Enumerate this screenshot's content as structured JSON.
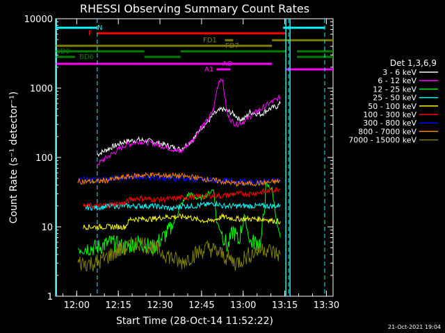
{
  "chart_data": {
    "type": "line",
    "title": "RHESSI Observing Summary Count Rates",
    "xlabel": "Start Time (28-Oct-14 11:52:22)",
    "ylabel": "Count Rate (s⁻¹ detector⁻¹)",
    "ylog": true,
    "ylim": [
      1,
      10000
    ],
    "xlim_minutes_from_start": [
      0,
      100
    ],
    "x_ticks": [
      {
        "label": "12:00",
        "t": 7.6
      },
      {
        "label": "12:15",
        "t": 22.6
      },
      {
        "label": "12:30",
        "t": 37.6
      },
      {
        "label": "12:45",
        "t": 52.6
      },
      {
        "label": "13:00",
        "t": 67.6
      },
      {
        "label": "13:15",
        "t": 82.6
      },
      {
        "label": "13:30",
        "t": 97.6
      }
    ],
    "y_ticks": [
      {
        "label": "1",
        "v": 1
      },
      {
        "label": "10",
        "v": 10
      },
      {
        "label": "100",
        "v": 100
      },
      {
        "label": "1000",
        "v": 1000
      },
      {
        "label": "10000",
        "v": 10000
      }
    ],
    "legend": {
      "title": "Det 1,3,6,9",
      "placement": "right"
    },
    "series": [
      {
        "name": "3 - 6 keV",
        "color": "#ffffff",
        "points": [
          [
            15,
            110
          ],
          [
            20,
            140
          ],
          [
            25,
            170
          ],
          [
            30,
            180
          ],
          [
            35,
            170
          ],
          [
            40,
            150
          ],
          [
            45,
            130
          ],
          [
            50,
            190
          ],
          [
            52,
            260
          ],
          [
            55,
            330
          ],
          [
            57,
            420
          ],
          [
            60,
            500
          ],
          [
            63,
            450
          ],
          [
            65,
            400
          ],
          [
            66,
            360
          ],
          [
            68,
            360
          ],
          [
            70,
            450
          ],
          [
            74,
            420
          ],
          [
            77,
            500
          ],
          [
            80,
            550
          ],
          [
            81,
            600
          ]
        ]
      },
      {
        "name": "6 - 12 keV",
        "color": "#ff00ff",
        "points": [
          [
            15,
            80
          ],
          [
            20,
            110
          ],
          [
            25,
            150
          ],
          [
            30,
            170
          ],
          [
            35,
            160
          ],
          [
            40,
            140
          ],
          [
            45,
            120
          ],
          [
            50,
            190
          ],
          [
            52,
            260
          ],
          [
            55,
            350
          ],
          [
            57,
            500
          ],
          [
            58,
            900
          ],
          [
            59,
            1300
          ],
          [
            60,
            1400
          ],
          [
            62,
            400
          ],
          [
            64,
            320
          ],
          [
            65,
            300
          ],
          [
            68,
            330
          ],
          [
            71,
            420
          ],
          [
            74,
            500
          ],
          [
            77,
            600
          ],
          [
            80,
            700
          ],
          [
            81,
            750
          ]
        ]
      },
      {
        "name": "12 - 25 keV",
        "color": "#00ff00",
        "points": [
          [
            8,
            5
          ],
          [
            15,
            5
          ],
          [
            20,
            6
          ],
          [
            25,
            5
          ],
          [
            30,
            6
          ],
          [
            35,
            5
          ],
          [
            40,
            8
          ],
          [
            42,
            10
          ],
          [
            45,
            20
          ],
          [
            48,
            30
          ],
          [
            52,
            25
          ],
          [
            55,
            30
          ],
          [
            57,
            35
          ],
          [
            58,
            12
          ],
          [
            60,
            8
          ],
          [
            62,
            5
          ],
          [
            64,
            9
          ],
          [
            66,
            6
          ],
          [
            68,
            15
          ],
          [
            70,
            6
          ],
          [
            74,
            6
          ],
          [
            76,
            40
          ],
          [
            78,
            35
          ],
          [
            80,
            10
          ],
          [
            81,
            7
          ]
        ]
      },
      {
        "name": "25 - 50 keV",
        "color": "#00ffff",
        "points": [
          [
            10,
            19
          ],
          [
            15,
            19
          ],
          [
            20,
            20
          ],
          [
            25,
            20
          ],
          [
            30,
            20
          ],
          [
            35,
            20
          ],
          [
            40,
            19
          ],
          [
            42,
            18
          ],
          [
            45,
            20
          ],
          [
            50,
            20
          ],
          [
            55,
            21
          ],
          [
            58,
            22
          ],
          [
            60,
            20
          ],
          [
            65,
            20
          ],
          [
            70,
            20
          ],
          [
            75,
            20
          ],
          [
            80,
            20
          ],
          [
            81,
            21
          ]
        ]
      },
      {
        "name": "50 - 100 keV",
        "color": "#ffff00",
        "points": [
          [
            10,
            10
          ],
          [
            15,
            10
          ],
          [
            20,
            10
          ],
          [
            25,
            10
          ],
          [
            27,
            13
          ],
          [
            30,
            13
          ],
          [
            32,
            13
          ],
          [
            35,
            13
          ],
          [
            40,
            14
          ],
          [
            45,
            14
          ],
          [
            48,
            14
          ],
          [
            50,
            13
          ],
          [
            55,
            12
          ],
          [
            58,
            13
          ],
          [
            60,
            14
          ],
          [
            65,
            13
          ],
          [
            70,
            13
          ],
          [
            75,
            13
          ],
          [
            80,
            12
          ],
          [
            81,
            12
          ]
        ]
      },
      {
        "name": "100 - 300 keV",
        "color": "#ff0000",
        "points": [
          [
            10,
            20
          ],
          [
            15,
            20
          ],
          [
            20,
            21
          ],
          [
            25,
            22
          ],
          [
            27,
            25
          ],
          [
            30,
            26
          ],
          [
            35,
            25
          ],
          [
            40,
            25
          ],
          [
            45,
            26
          ],
          [
            50,
            27
          ],
          [
            55,
            28
          ],
          [
            60,
            28
          ],
          [
            65,
            30
          ],
          [
            70,
            30
          ],
          [
            75,
            32
          ],
          [
            80,
            35
          ],
          [
            81,
            35
          ]
        ]
      },
      {
        "name": "300 - 800 keV",
        "color": "#0000ff",
        "points": [
          [
            8,
            50
          ],
          [
            15,
            48
          ],
          [
            20,
            50
          ],
          [
            25,
            52
          ],
          [
            30,
            52
          ],
          [
            35,
            52
          ],
          [
            40,
            50
          ],
          [
            45,
            50
          ],
          [
            50,
            48
          ],
          [
            55,
            48
          ],
          [
            60,
            46
          ],
          [
            65,
            45
          ],
          [
            70,
            44
          ],
          [
            75,
            45
          ],
          [
            80,
            47
          ],
          [
            81,
            48
          ]
        ]
      },
      {
        "name": "800 - 7000 keV",
        "color": "#ff8800",
        "points": [
          [
            8,
            45
          ],
          [
            15,
            45
          ],
          [
            20,
            48
          ],
          [
            25,
            52
          ],
          [
            30,
            55
          ],
          [
            35,
            56
          ],
          [
            40,
            55
          ],
          [
            45,
            54
          ],
          [
            50,
            52
          ],
          [
            55,
            48
          ],
          [
            60,
            45
          ],
          [
            65,
            42
          ],
          [
            70,
            42
          ],
          [
            75,
            43
          ],
          [
            80,
            45
          ],
          [
            81,
            46
          ]
        ]
      },
      {
        "name": "7000 - 15000 keV",
        "color": "#808000",
        "points": [
          [
            8,
            3
          ],
          [
            15,
            3
          ],
          [
            20,
            4
          ],
          [
            25,
            5
          ],
          [
            30,
            6
          ],
          [
            35,
            5
          ],
          [
            40,
            4
          ],
          [
            45,
            3
          ],
          [
            50,
            4
          ],
          [
            55,
            5
          ],
          [
            60,
            4
          ],
          [
            65,
            3
          ],
          [
            70,
            4
          ],
          [
            75,
            5
          ],
          [
            80,
            4
          ],
          [
            81,
            4
          ]
        ]
      }
    ],
    "annotations": {
      "flag_labels": [
        {
          "label": "N",
          "color": "#00ffff"
        },
        {
          "label": "F",
          "color": "#ff0000"
        },
        {
          "label": "FD1",
          "color": "#808000"
        },
        {
          "label": "FD7",
          "color": "#808000"
        },
        {
          "label": "BD0",
          "color": "#008000"
        },
        {
          "label": "BD6",
          "color": "#008000"
        },
        {
          "label": "AO",
          "color": "#ff00ff"
        },
        {
          "label": "A1",
          "color": "#ff00ff"
        }
      ]
    }
  },
  "footer": {
    "timestamp": "21-Oct-2021 19:04"
  }
}
